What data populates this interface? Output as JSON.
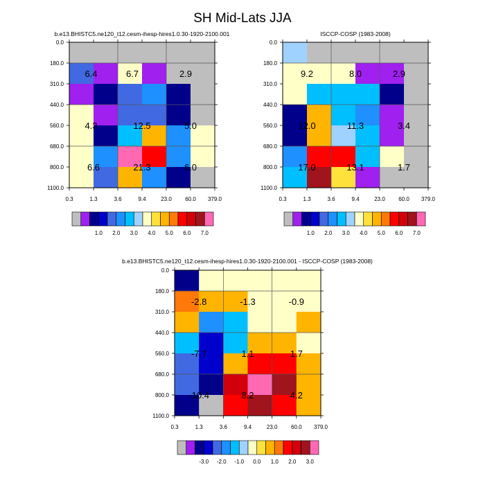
{
  "title": "SH Mid-Lats JJA",
  "chart_data": [
    {
      "type": "heatmap",
      "title": "b.e13.BHISTC5.ne120_t12.cesm-ihesp-hires1.0.30-1920-2100.001",
      "x_ticks": [
        "0.3",
        "1.3",
        "3.6",
        "9.4",
        "23.0",
        "60.0",
        "379.0"
      ],
      "y_ticks": [
        "0.0",
        "180.0",
        "310.0",
        "440.0",
        "560.0",
        "680.0",
        "800.0",
        "1100.0"
      ],
      "cells": [
        [
          0,
          0,
          0,
          0,
          0,
          0
        ],
        [
          4,
          1,
          8,
          1,
          0,
          0
        ],
        [
          1,
          2,
          4,
          5,
          2,
          0
        ],
        [
          8,
          1,
          4,
          4,
          2,
          0
        ],
        [
          8,
          2,
          6,
          10,
          5,
          8
        ],
        [
          8,
          5,
          15,
          12,
          5,
          8
        ],
        [
          8,
          4,
          10,
          5,
          2,
          0
        ]
      ],
      "labels": [
        {
          "text": "6.4",
          "col": 0.9,
          "row": 1.5
        },
        {
          "text": "6.7",
          "col": 2.6,
          "row": 1.5
        },
        {
          "text": "2.9",
          "col": 4.8,
          "row": 1.5
        },
        {
          "text": "4.3",
          "col": 0.9,
          "row": 4.0
        },
        {
          "text": "12.5",
          "col": 3.0,
          "row": 4.0
        },
        {
          "text": "5.0",
          "col": 5.0,
          "row": 4.0
        },
        {
          "text": "6.6",
          "col": 1.0,
          "row": 6.0
        },
        {
          "text": "21.3",
          "col": 3.0,
          "row": 6.0
        },
        {
          "text": "6.0",
          "col": 5.0,
          "row": 6.0
        }
      ]
    },
    {
      "type": "heatmap",
      "title": "ISCCP-COSP (1983-2008)",
      "x_ticks": [
        "0.3",
        "1.3",
        "3.6",
        "9.4",
        "23.0",
        "60.0",
        "379.0"
      ],
      "y_ticks": [
        "0.0",
        "180.0",
        "310.0",
        "440.0",
        "560.0",
        "680.0",
        "800.0",
        "1100.0"
      ],
      "cells": [
        [
          7,
          0,
          0,
          0,
          0,
          0
        ],
        [
          8,
          8,
          8,
          1,
          1,
          0
        ],
        [
          8,
          6,
          6,
          6,
          2,
          0
        ],
        [
          2,
          10,
          6,
          5,
          1,
          0
        ],
        [
          2,
          10,
          7,
          6,
          1,
          0
        ],
        [
          5,
          12,
          12,
          6,
          8,
          0
        ],
        [
          6,
          14,
          9,
          1,
          0,
          0
        ]
      ],
      "labels": [
        {
          "text": "9.2",
          "col": 1.0,
          "row": 1.5
        },
        {
          "text": "8.0",
          "col": 3.0,
          "row": 1.5
        },
        {
          "text": "2.9",
          "col": 4.8,
          "row": 1.5
        },
        {
          "text": "12.0",
          "col": 1.0,
          "row": 4.0
        },
        {
          "text": "11.3",
          "col": 3.0,
          "row": 4.0
        },
        {
          "text": "3.4",
          "col": 5.0,
          "row": 4.0
        },
        {
          "text": "17.0",
          "col": 1.0,
          "row": 6.0
        },
        {
          "text": "13.1",
          "col": 3.0,
          "row": 6.0
        },
        {
          "text": "1.7",
          "col": 5.0,
          "row": 6.0
        }
      ]
    },
    {
      "type": "heatmap",
      "title": "b.e13.BHISTC5.ne120_t12.cesm-ihesp-hires1.0.30-1920-2100.001 - ISCCP-COSP (1983-2008)",
      "x_ticks": [
        "0.3",
        "1.3",
        "3.6",
        "9.4",
        "23.0",
        "60.0",
        "379.0"
      ],
      "y_ticks": [
        "0.0",
        "180.0",
        "310.0",
        "440.0",
        "560.0",
        "680.0",
        "800.0",
        "1100.0"
      ],
      "cells": [
        [
          2,
          8,
          8,
          8,
          8,
          8
        ],
        [
          11,
          10,
          10,
          8,
          8,
          8
        ],
        [
          10,
          5,
          6,
          8,
          8,
          10
        ],
        [
          6,
          3,
          6,
          10,
          10,
          8
        ],
        [
          4,
          3,
          10,
          12,
          12,
          10
        ],
        [
          4,
          2,
          13,
          15,
          14,
          10
        ],
        [
          2,
          0,
          12,
          14,
          12,
          10
        ]
      ],
      "labels": [
        {
          "text": "-2.8",
          "col": 1.0,
          "row": 1.5
        },
        {
          "text": "-1.3",
          "col": 3.0,
          "row": 1.5
        },
        {
          "text": "-0.9",
          "col": 5.0,
          "row": 1.5
        },
        {
          "text": "-7.7",
          "col": 1.0,
          "row": 4.0
        },
        {
          "text": "1.1",
          "col": 3.0,
          "row": 4.0
        },
        {
          "text": "1.7",
          "col": 5.0,
          "row": 4.0
        },
        {
          "text": "-10.4",
          "col": 1.0,
          "row": 6.0
        },
        {
          "text": "8.2",
          "col": 3.0,
          "row": 6.0
        },
        {
          "text": "4.2",
          "col": 5.0,
          "row": 6.0
        }
      ]
    }
  ],
  "palette": [
    "#bebebe",
    "#a020f0",
    "#00008b",
    "#0000cd",
    "#4169e1",
    "#1e90ff",
    "#00bfff",
    "#a0d2ff",
    "#ffffc8",
    "#ffe13c",
    "#ffb400",
    "#ff780a",
    "#ff0000",
    "#d2000a",
    "#a0141e",
    "#ff69b4"
  ],
  "colorbars": [
    {
      "labels": [
        "1.0",
        "2.0",
        "3.0",
        "4.0",
        "5.0",
        "6.0",
        "7.0"
      ]
    },
    {
      "labels": [
        "1.0",
        "2.0",
        "3.0",
        "4.0",
        "5.0",
        "6.0",
        "7.0"
      ]
    },
    {
      "labels": [
        "-3.0",
        "-2.0",
        "-1.0",
        "0.0",
        "1.0",
        "2.0",
        "3.0"
      ]
    }
  ]
}
